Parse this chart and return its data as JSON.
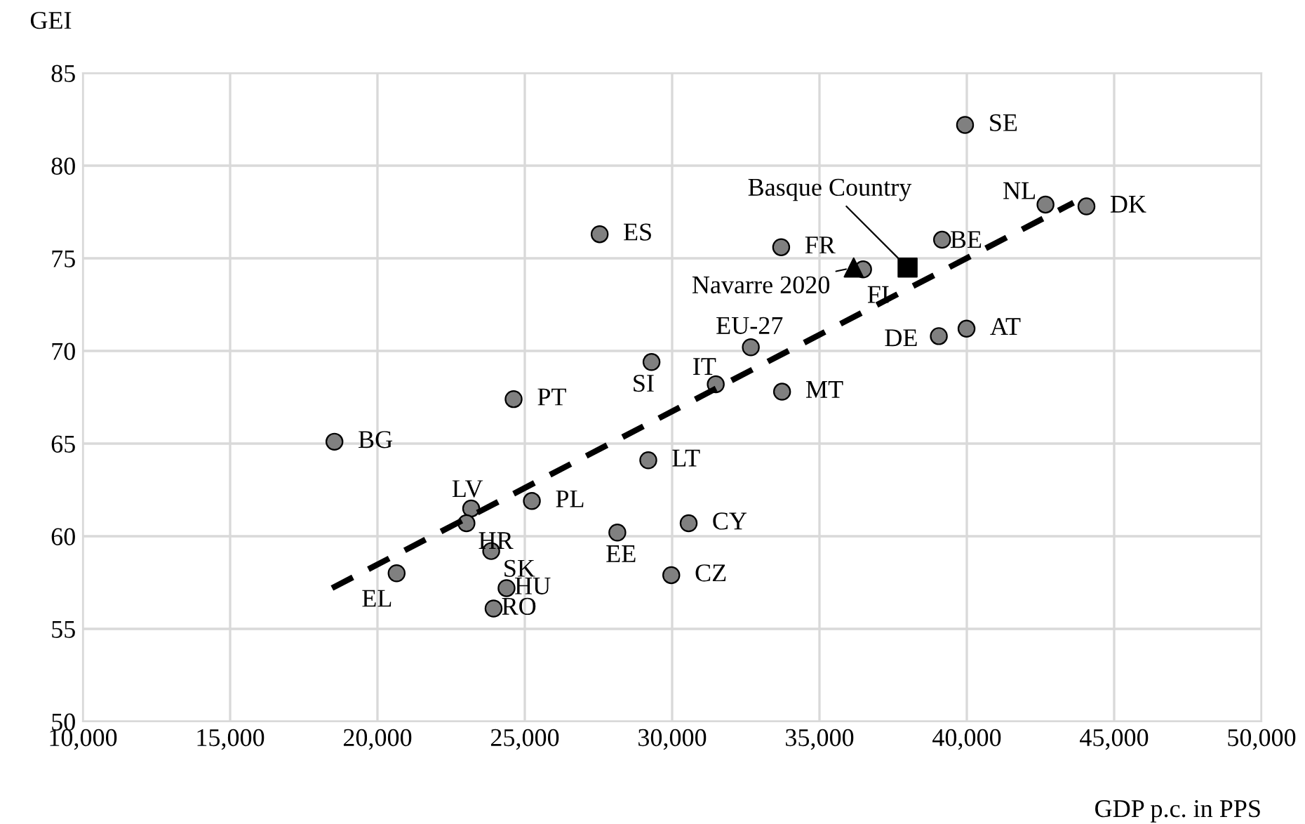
{
  "chart_data": {
    "type": "scatter",
    "xlabel": "GDP p.c. in PPS",
    "ylabel": "GEI",
    "xlim": [
      10000,
      50000
    ],
    "ylim": [
      50,
      85
    ],
    "xticks": [
      {
        "value": 10000,
        "label": "10,000"
      },
      {
        "value": 15000,
        "label": "15,000"
      },
      {
        "value": 20000,
        "label": "20,000"
      },
      {
        "value": 25000,
        "label": "25,000"
      },
      {
        "value": 30000,
        "label": "30,000"
      },
      {
        "value": 35000,
        "label": "35,000"
      },
      {
        "value": 40000,
        "label": "40,000"
      },
      {
        "value": 45000,
        "label": "45,000"
      },
      {
        "value": 50000,
        "label": "50,000"
      }
    ],
    "yticks": [
      50,
      55,
      60,
      65,
      70,
      75,
      80,
      85
    ],
    "grid": true,
    "series": [
      {
        "marker": "circle",
        "color": "#808080",
        "x": [
          27540,
          33700,
          32670,
          29300,
          31480,
          33730,
          24620,
          18540,
          29190,
          25240,
          23180,
          23020,
          30560,
          28140,
          23860,
          20650,
          29970,
          24380,
          23940,
          39940,
          42670,
          44060,
          39160,
          36480,
          39050,
          39990
        ],
        "values": [
          76.3,
          75.6,
          70.2,
          69.4,
          68.2,
          67.8,
          67.4,
          65.1,
          64.1,
          61.9,
          61.5,
          60.7,
          60.7,
          60.2,
          59.2,
          58.0,
          57.9,
          57.2,
          56.1,
          82.2,
          77.9,
          77.8,
          76.0,
          74.4,
          70.8,
          71.2
        ],
        "value_labels": [
          "ES",
          "FR",
          "EU-27",
          "SI",
          "IT",
          "MT",
          "PT",
          "BG",
          "LT",
          "PL",
          "LV",
          "HR",
          "CY",
          "EE",
          "SK",
          "EL",
          "CZ",
          "HU",
          "RO",
          "SE",
          "NL",
          "DK",
          "BE",
          "FI",
          "DE",
          "AT"
        ]
      },
      {
        "marker": "triangle",
        "color": "#000000",
        "x": [
          36160
        ],
        "values": [
          74.5
        ]
      },
      {
        "marker": "square",
        "color": "#000000",
        "x": [
          37990
        ],
        "values": [
          74.5
        ]
      },
      {
        "type": "line",
        "line_style": "dashed",
        "color": "#000000",
        "x": [
          18460,
          43620
        ],
        "values": [
          57.2,
          78.0
        ]
      }
    ],
    "annotations": [
      {
        "text": "Navarre 2020",
        "x": 36160,
        "y": 74.5
      },
      {
        "text": "Basque Country",
        "x": 37990,
        "y": 74.5
      }
    ]
  }
}
